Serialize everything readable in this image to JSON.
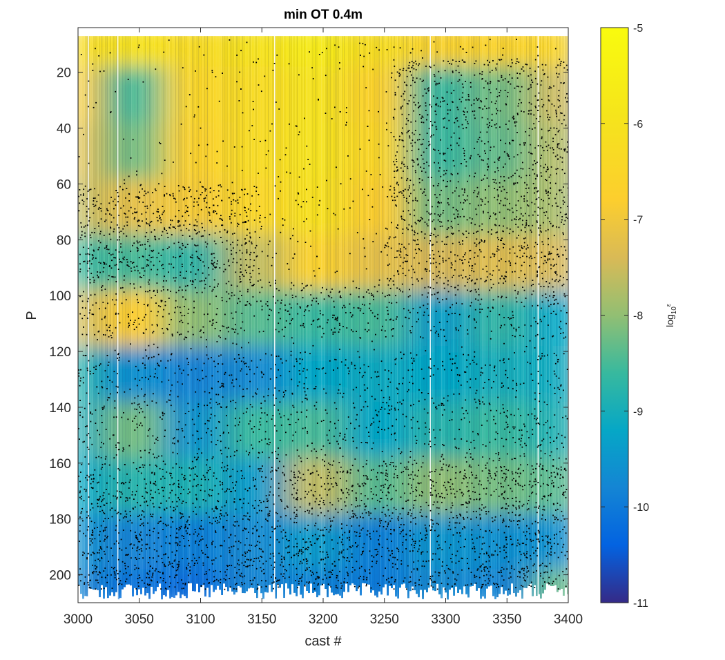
{
  "chart_data": {
    "type": "heatmap",
    "title": "min OT 0.4m",
    "xlabel": "cast #",
    "ylabel": "P",
    "xlim": [
      3000,
      3400
    ],
    "ylim": [
      210,
      4
    ],
    "y_reversed": true,
    "xticks": [
      3000,
      3050,
      3100,
      3150,
      3200,
      3250,
      3300,
      3350,
      3400
    ],
    "yticks": [
      20,
      40,
      60,
      80,
      100,
      120,
      140,
      160,
      180,
      200
    ],
    "grid": false,
    "overlay": "black scatter dots marking overturn locations",
    "colorbar": {
      "label": "log10 ε",
      "label_base": "log",
      "label_sub": "10",
      "label_sup": "ε",
      "range": [
        -11,
        -5
      ],
      "ticks": [
        -5,
        -6,
        -7,
        -8,
        -9,
        -10,
        -11
      ],
      "colormap": "parula"
    },
    "field_summary": {
      "x_bins": [
        3000,
        3050,
        3100,
        3150,
        3200,
        3250,
        3300,
        3350,
        3400
      ],
      "p_bins": [
        5,
        20,
        40,
        60,
        80,
        100,
        120,
        140,
        160,
        180,
        200,
        210
      ],
      "log10_eps": [
        [
          -6.3,
          -6.0,
          -6.3,
          -6.0,
          -5.7,
          -6.2,
          -6.6,
          -6.6,
          -6.5
        ],
        [
          -6.8,
          -8.5,
          -6.5,
          -6.3,
          -6.0,
          -6.7,
          -8.6,
          -8.2,
          -7.5
        ],
        [
          -7.2,
          -8.2,
          -6.7,
          -6.3,
          -6.0,
          -6.5,
          -8.6,
          -8.3,
          -7.7
        ],
        [
          -7.6,
          -7.2,
          -6.9,
          -6.5,
          -6.1,
          -6.8,
          -8.2,
          -8.0,
          -7.8
        ],
        [
          -8.6,
          -8.5,
          -8.7,
          -7.6,
          -6.7,
          -7.2,
          -7.4,
          -7.3,
          -7.4
        ],
        [
          -7.5,
          -6.8,
          -8.0,
          -8.4,
          -8.6,
          -8.5,
          -9.3,
          -8.7,
          -9.2
        ],
        [
          -8.8,
          -9.6,
          -9.8,
          -9.7,
          -9.2,
          -9.1,
          -9.2,
          -9.0,
          -9.1
        ],
        [
          -9.0,
          -8.2,
          -9.5,
          -8.6,
          -8.5,
          -9.2,
          -8.8,
          -8.6,
          -8.9
        ],
        [
          -9.2,
          -8.8,
          -8.9,
          -9.4,
          -7.6,
          -8.4,
          -8.0,
          -8.2,
          -8.4
        ],
        [
          -9.6,
          -9.8,
          -9.9,
          -9.7,
          -9.4,
          -9.9,
          -9.5,
          -9.6,
          -9.6
        ],
        [
          -9.8,
          -10.1,
          -10.2,
          -9.8,
          -9.9,
          -10.0,
          -9.7,
          -9.8,
          -8.3
        ]
      ]
    }
  }
}
